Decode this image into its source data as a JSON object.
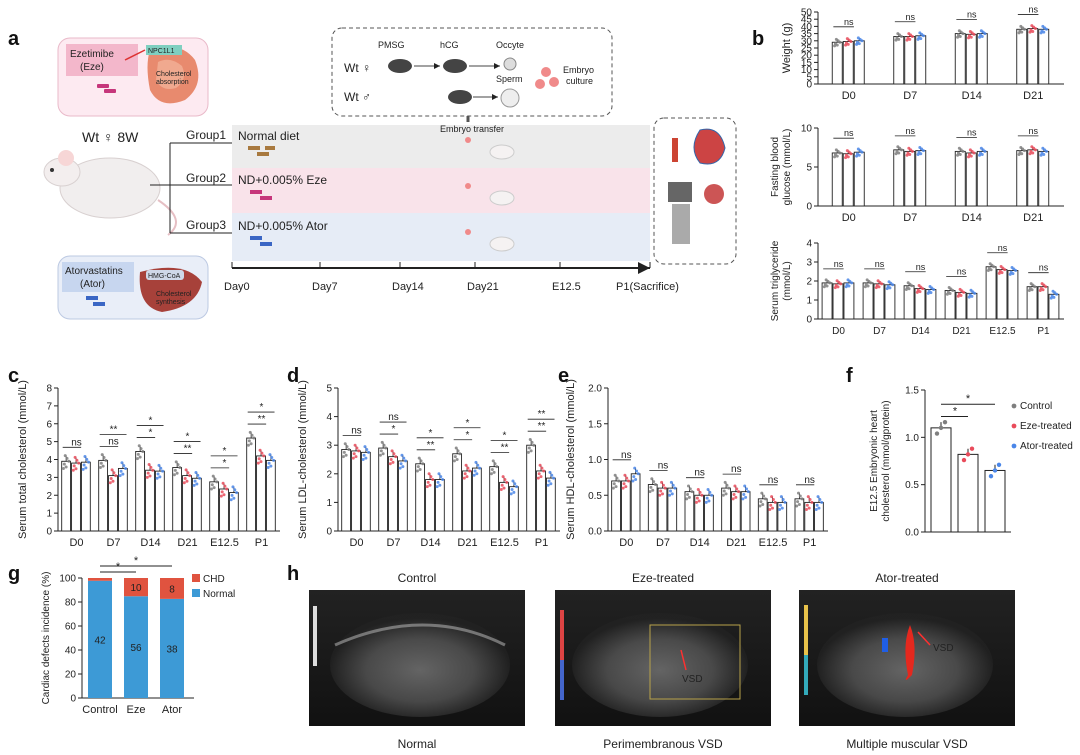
{
  "panel_letters": {
    "a": "a",
    "b": "b",
    "c": "c",
    "d": "d",
    "e": "e",
    "f": "f",
    "g": "g",
    "h": "h"
  },
  "colors": {
    "control": "#7f7f7f",
    "eze": "#e94b5b",
    "ator": "#4a86e8",
    "chd": "#e0533f",
    "normal": "#3d9ad6",
    "group1": "#ececec",
    "group2": "#f9e3ea",
    "group3": "#e6ecf6",
    "box": "#fdeaf1",
    "liverbox": "#e9eef8",
    "bar_border": "#222"
  },
  "schematic": {
    "eze_box": {
      "title": "Ezetimibe\n(Eze)",
      "target": "NPC1L1",
      "effect": "Cholesterol absorption"
    },
    "ator_box": {
      "title": "Atorvastatins\n(Ator)",
      "target": "HMG-CoA",
      "effect": "Cholesterol synthesis"
    },
    "mouse_label": "Wt ♀ 8W",
    "groups": [
      "Group1",
      "Group2",
      "Group3"
    ],
    "diets": [
      "Normal diet",
      "ND+0.005% Eze",
      "ND+0.005% Ator"
    ],
    "ivf": {
      "pmsg": "PMSG",
      "hcg": "hCG",
      "occyte": "Occyte",
      "sperm": "Sperm",
      "culture": "Embryo culture",
      "wt_f": "Wt ♀",
      "wt_m": "Wt ♂"
    },
    "embryo_transfer": "Embryo transfer",
    "timeline": [
      "Day0",
      "Day7",
      "Day14",
      "Day21",
      "E12.5",
      "P1(Sacrifice)"
    ]
  },
  "chart_data": [
    {
      "id": "b1",
      "type": "bar",
      "ylabel": "Weight (g)",
      "ylim": [
        0,
        50
      ],
      "yticks": [
        0,
        5,
        10,
        15,
        20,
        25,
        30,
        35,
        40,
        45,
        50
      ],
      "categories": [
        "D0",
        "D7",
        "D14",
        "D21"
      ],
      "series": [
        {
          "name": "Control",
          "values": [
            29,
            33,
            35,
            38
          ]
        },
        {
          "name": "Eze-treated",
          "values": [
            29.5,
            33,
            34.5,
            38.5
          ]
        },
        {
          "name": "Ator-treated",
          "values": [
            30,
            33.5,
            35,
            38
          ]
        }
      ],
      "annotations": [
        "ns",
        "ns",
        "ns",
        "ns"
      ]
    },
    {
      "id": "b2",
      "type": "bar",
      "ylabel": "Fasting blood\nglucose (mmol/L)",
      "ylim": [
        0,
        10
      ],
      "yticks": [
        0,
        5,
        10
      ],
      "categories": [
        "D0",
        "D7",
        "D14",
        "D21"
      ],
      "series": [
        {
          "name": "Control",
          "values": [
            6.8,
            7.2,
            7.0,
            7.1
          ]
        },
        {
          "name": "Eze-treated",
          "values": [
            6.7,
            7.0,
            6.8,
            7.2
          ]
        },
        {
          "name": "Ator-treated",
          "values": [
            6.9,
            7.1,
            7.0,
            7.0
          ]
        }
      ],
      "annotations": [
        "ns",
        "ns",
        "ns",
        "ns"
      ]
    },
    {
      "id": "b3",
      "type": "bar",
      "ylabel": "Serum triglyceride\n(mmol/L)",
      "ylim": [
        0,
        4
      ],
      "yticks": [
        0,
        1,
        2,
        3,
        4
      ],
      "categories": [
        "D0",
        "D7",
        "D14",
        "D21",
        "E12.5",
        "P1"
      ],
      "series": [
        {
          "name": "Control",
          "values": [
            1.9,
            1.9,
            1.75,
            1.5,
            2.75,
            1.7
          ]
        },
        {
          "name": "Eze-treated",
          "values": [
            1.85,
            1.85,
            1.6,
            1.4,
            2.6,
            1.7
          ]
        },
        {
          "name": "Ator-treated",
          "values": [
            1.9,
            1.8,
            1.55,
            1.35,
            2.55,
            1.3
          ]
        }
      ],
      "annotations": [
        "ns",
        "ns",
        "ns",
        "ns",
        "ns",
        "ns"
      ]
    },
    {
      "id": "c",
      "type": "bar",
      "ylabel": "Serum total cholesterol (mmol/L)",
      "ylim": [
        0,
        8
      ],
      "yticks": [
        0,
        1,
        2,
        3,
        4,
        5,
        6,
        7,
        8
      ],
      "categories": [
        "D0",
        "D7",
        "D14",
        "D21",
        "E12.5",
        "P1"
      ],
      "series": [
        {
          "name": "Control",
          "values": [
            3.9,
            3.95,
            4.45,
            3.55,
            2.75,
            5.2
          ]
        },
        {
          "name": "Eze-treated",
          "values": [
            3.8,
            3.1,
            3.4,
            3.1,
            2.35,
            4.2
          ]
        },
        {
          "name": "Ator-treated",
          "values": [
            3.85,
            3.5,
            3.35,
            2.95,
            2.15,
            3.95
          ]
        }
      ],
      "annotations": [
        "ns",
        "ns/**",
        "*/*",
        "**/*",
        "*/*",
        "**/*"
      ]
    },
    {
      "id": "d",
      "type": "bar",
      "ylabel": "Serum LDL-cholesterol (mmol/L)",
      "ylim": [
        0,
        5
      ],
      "yticks": [
        0,
        1,
        2,
        3,
        4,
        5
      ],
      "categories": [
        "D0",
        "D7",
        "D14",
        "D21",
        "E12.5",
        "P1"
      ],
      "series": [
        {
          "name": "Control",
          "values": [
            2.85,
            2.9,
            2.35,
            2.7,
            2.25,
            3.0
          ]
        },
        {
          "name": "Eze-treated",
          "values": [
            2.8,
            2.6,
            1.8,
            2.1,
            1.7,
            2.1
          ]
        },
        {
          "name": "Ator-treated",
          "values": [
            2.75,
            2.45,
            1.8,
            2.2,
            1.55,
            1.85
          ]
        }
      ],
      "annotations": [
        "ns",
        "*/ns",
        "**/*",
        "*/*",
        "**/*",
        "**/**"
      ]
    },
    {
      "id": "e",
      "type": "bar",
      "ylabel": "Serum HDL-cholesterol (mmol/L)",
      "ylim": [
        0,
        2.0
      ],
      "yticks": [
        0.0,
        0.5,
        1.0,
        1.5,
        2.0
      ],
      "categories": [
        "D0",
        "D7",
        "D14",
        "D21",
        "E12.5",
        "P1"
      ],
      "series": [
        {
          "name": "Control",
          "values": [
            0.7,
            0.65,
            0.55,
            0.6,
            0.45,
            0.45
          ]
        },
        {
          "name": "Eze-treated",
          "values": [
            0.7,
            0.6,
            0.5,
            0.55,
            0.4,
            0.4
          ]
        },
        {
          "name": "Ator-treated",
          "values": [
            0.8,
            0.6,
            0.5,
            0.55,
            0.4,
            0.4
          ]
        }
      ],
      "annotations": [
        "ns",
        "ns",
        "ns",
        "ns",
        "ns",
        "ns"
      ]
    },
    {
      "id": "f",
      "type": "bar",
      "ylabel": "E12.5 Embryonic heart\ncholesterol (mmol/gprotein)",
      "ylim": [
        0,
        1.5
      ],
      "yticks": [
        0.0,
        0.5,
        1.0,
        1.5
      ],
      "categories": [
        "Control",
        "Eze-treated",
        "Ator-treated"
      ],
      "values": [
        1.1,
        0.82,
        0.65
      ],
      "legend": [
        "Control",
        "Eze-treated",
        "Ator-treated"
      ],
      "legend_position": "right"
    },
    {
      "id": "g",
      "type": "bar",
      "stacked": true,
      "ylabel": "Cardiac defects incidence (%)",
      "ylim": [
        0,
        100
      ],
      "yticks": [
        0,
        20,
        40,
        60,
        80,
        100
      ],
      "categories": [
        "Control",
        "Eze",
        "Ator"
      ],
      "series": [
        {
          "name": "Normal",
          "values": [
            97.7,
            84.8,
            82.6
          ],
          "counts": [
            "42",
            "56",
            "38"
          ]
        },
        {
          "name": "CHD",
          "values": [
            2.3,
            15.2,
            17.4
          ],
          "counts": [
            "",
            "10",
            "8"
          ]
        }
      ],
      "legend": [
        "CHD",
        "Normal"
      ],
      "legend_position": "top-right"
    }
  ],
  "ultrasound": {
    "titles": [
      "Control",
      "Eze-treated",
      "Ator-treated"
    ],
    "captions": [
      "Normal",
      "Perimembranous VSD",
      "Multiple muscular VSD"
    ],
    "labels": [
      "",
      "VSD",
      "VSD"
    ]
  }
}
